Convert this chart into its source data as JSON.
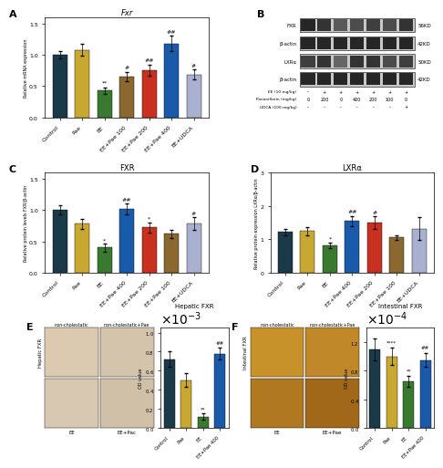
{
  "panel_A": {
    "title": "Fxr",
    "label": "A",
    "categories": [
      "Control",
      "Pae",
      "EE",
      "EE+Pae 100",
      "EE+Pae 200",
      "EE+Pae 400",
      "EE+UDCA"
    ],
    "values": [
      1.0,
      1.08,
      0.43,
      0.65,
      0.75,
      1.18,
      0.68
    ],
    "errors": [
      0.06,
      0.1,
      0.05,
      0.07,
      0.09,
      0.12,
      0.08
    ],
    "colors": [
      "#1a3a4a",
      "#c8a830",
      "#3a7a30",
      "#8b6830",
      "#c83020",
      "#1a5aaa",
      "#aab0d0"
    ],
    "ylabel": "Relative mRNA expression",
    "ylim": [
      0,
      1.6
    ],
    "yticks": [
      0.0,
      0.5,
      1.0,
      1.5
    ],
    "sig_marks": [
      "",
      "",
      "**",
      "#",
      "##",
      "##",
      "#"
    ]
  },
  "panel_B": {
    "label": "B",
    "bands": [
      "FXR",
      "β-actin",
      "LXRα",
      "β-actin"
    ],
    "kd_labels": [
      "56KD",
      "42KD",
      "50KD",
      "42KD"
    ],
    "ee_row": [
      "-",
      "+",
      "+",
      "+",
      "+",
      "+",
      "+"
    ],
    "pae_row": [
      "0",
      "200",
      "0",
      "400",
      "200",
      "100",
      "0"
    ],
    "udca_row": [
      "-",
      "-",
      "-",
      "-",
      "-",
      "-",
      "+"
    ]
  },
  "panel_C": {
    "title": "FXR",
    "label": "C",
    "categories": [
      "Control",
      "Pae",
      "EE",
      "EE+Pae 400",
      "EE+Pae 200",
      "EE+Pae 100",
      "EE+UDCA"
    ],
    "values": [
      1.0,
      0.78,
      0.4,
      1.02,
      0.72,
      0.62,
      0.78
    ],
    "errors": [
      0.07,
      0.08,
      0.06,
      0.09,
      0.08,
      0.07,
      0.1
    ],
    "colors": [
      "#1a3a4a",
      "#c8a830",
      "#3a7a30",
      "#1a5aaa",
      "#c83020",
      "#8b6830",
      "#aab0d0"
    ],
    "ylabel": "Relative protein levels FXR/β-actin",
    "ylim": [
      0,
      1.6
    ],
    "yticks": [
      0.0,
      0.5,
      1.0,
      1.5
    ],
    "sig_marks": [
      "",
      "",
      "*",
      "##",
      "*",
      "",
      "#"
    ]
  },
  "panel_D": {
    "title": "LXRα",
    "label": "D",
    "categories": [
      "Control",
      "Pae",
      "EE",
      "EE+Pae 400",
      "EE+Pae 200",
      "EE+Pae 100",
      "EE+UDCA"
    ],
    "values": [
      1.22,
      1.25,
      0.82,
      1.55,
      1.5,
      1.05,
      1.32
    ],
    "errors": [
      0.1,
      0.12,
      0.08,
      0.15,
      0.18,
      0.08,
      0.35
    ],
    "colors": [
      "#1a3a4a",
      "#c8a830",
      "#3a7a30",
      "#1a5aaa",
      "#c83020",
      "#8b6830",
      "#aab0d0"
    ],
    "ylabel": "Relative protein expression LXRα/β-actin",
    "ylim": [
      0,
      3.0
    ],
    "yticks": [
      0.0,
      1.0,
      2.0,
      3.0
    ],
    "sig_marks": [
      "",
      "",
      "*",
      "##",
      "#",
      "",
      ""
    ]
  },
  "panel_E": {
    "label": "E",
    "img_top_labels": [
      "non-cholestatic",
      "non-cholestatic+Pae"
    ],
    "img_bot_labels": [
      "EE",
      "EE+Pac"
    ],
    "img_ylabel": "Hepatic FXR",
    "img_colors": [
      "#dbc9b0",
      "#d4c4ac",
      "#d8c8b2",
      "#d0c0a8"
    ],
    "bar_title": "Hepatic FXR",
    "bar_categories": [
      "Control",
      "Pae",
      "EE",
      "EE+Pae 400"
    ],
    "bar_values": [
      0.00072,
      0.0005,
      0.00012,
      0.00078
    ],
    "bar_errors": [
      8e-05,
      7e-05,
      3e-05,
      6e-05
    ],
    "bar_colors": [
      "#1a3a4a",
      "#c8a830",
      "#3a7a30",
      "#1a5aaa"
    ],
    "bar_ylabel": "OD value",
    "bar_ylim": [
      0,
      0.00105
    ],
    "bar_yticks": [
      0,
      0.0002,
      0.0004,
      0.0006,
      0.0008,
      0.001
    ],
    "bar_sig": [
      "",
      "",
      "**",
      "##"
    ]
  },
  "panel_F": {
    "label": "F",
    "img_top_labels": [
      "non-cholestatic",
      "non-cholestatic+Pae"
    ],
    "img_bot_labels": [
      "EE",
      "EE+Pae"
    ],
    "img_ylabel": "Intestinal FXR",
    "img_colors": [
      "#c8922a",
      "#c08828",
      "#b07820",
      "#a06818"
    ],
    "bar_title": "Intestinal FXR",
    "bar_categories": [
      "Control",
      "Pae",
      "EE",
      "EE+Pae 400"
    ],
    "bar_values": [
      0.00011,
      0.0001,
      6.5e-05,
      9.5e-05
    ],
    "bar_errors": [
      1.5e-05,
      1.2e-05,
      8e-06,
      1e-05
    ],
    "bar_colors": [
      "#1a3a4a",
      "#c8a830",
      "#3a7a30",
      "#1a5aaa"
    ],
    "bar_ylabel": "OD value",
    "bar_ylim": [
      0,
      0.00014
    ],
    "bar_yticks": [
      0,
      4e-05,
      8e-05,
      0.00012
    ],
    "bar_sig": [
      "",
      "****",
      "**",
      "##"
    ]
  },
  "background_color": "#ffffff",
  "tick_labelsize": 4.5,
  "axis_labelsize": 4.5,
  "title_fontsize": 6,
  "panel_label_fontsize": 8
}
